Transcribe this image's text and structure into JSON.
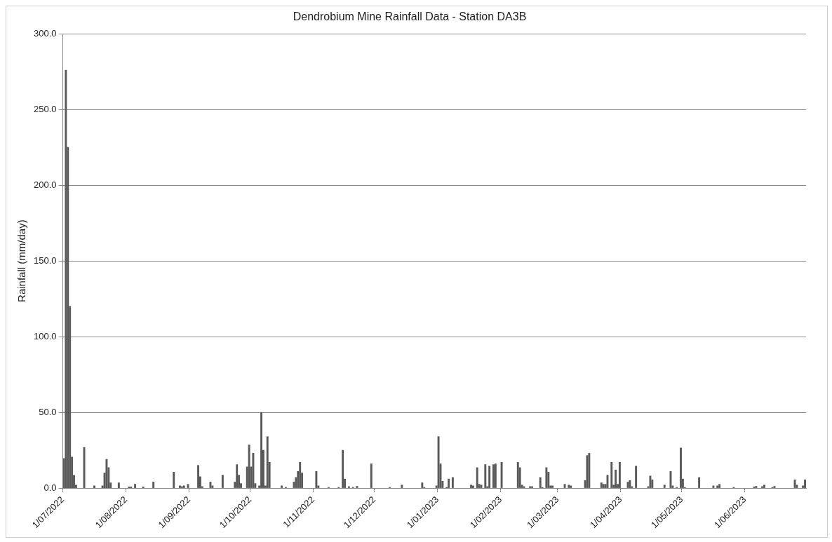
{
  "chart_data": {
    "type": "bar",
    "title": "Dendrobium Mine Rainfall Data - Station DA3B",
    "ylabel": "Rainfall (mm/day)",
    "grid": "y",
    "legend": false,
    "xlim": [
      "2022-07-01",
      "2023-07-01"
    ],
    "xticks": [
      {
        "value": "2022-07-01",
        "label": "1/07/2022"
      },
      {
        "value": "2022-08-01",
        "label": "1/08/2022"
      },
      {
        "value": "2022-09-01",
        "label": "1/09/2022"
      },
      {
        "value": "2022-10-01",
        "label": "1/10/2022"
      },
      {
        "value": "2022-11-01",
        "label": "1/11/2022"
      },
      {
        "value": "2022-12-01",
        "label": "1/12/2022"
      },
      {
        "value": "2023-01-01",
        "label": "1/01/2023"
      },
      {
        "value": "2023-02-01",
        "label": "1/02/2023"
      },
      {
        "value": "2023-03-01",
        "label": "1/03/2023"
      },
      {
        "value": "2023-04-01",
        "label": "1/04/2023"
      },
      {
        "value": "2023-05-01",
        "label": "1/05/2023"
      },
      {
        "value": "2023-06-01",
        "label": "1/06/2023"
      }
    ],
    "ylim": [
      0,
      300
    ],
    "yticks": [
      {
        "value": 0,
        "label": "0.0"
      },
      {
        "value": 50,
        "label": "50.0"
      },
      {
        "value": 100,
        "label": "100.0"
      },
      {
        "value": 150,
        "label": "150.0"
      },
      {
        "value": 200,
        "label": "200.0"
      },
      {
        "value": 250,
        "label": "250.0"
      },
      {
        "value": 300,
        "label": "300.0"
      }
    ],
    "series": [
      {
        "color": "#595959",
        "x": [
          "2022-07-01",
          "2022-07-02",
          "2022-07-03",
          "2022-07-04",
          "2022-07-05",
          "2022-07-06",
          "2022-07-07",
          "2022-07-11",
          "2022-07-16",
          "2022-07-20",
          "2022-07-21",
          "2022-07-22",
          "2022-07-23",
          "2022-07-24",
          "2022-07-28",
          "2022-08-02",
          "2022-08-03",
          "2022-08-05",
          "2022-08-09",
          "2022-08-14",
          "2022-08-24",
          "2022-08-27",
          "2022-08-28",
          "2022-08-29",
          "2022-08-31",
          "2022-09-05",
          "2022-09-06",
          "2022-09-07",
          "2022-09-11",
          "2022-09-12",
          "2022-09-17",
          "2022-09-23",
          "2022-09-24",
          "2022-09-25",
          "2022-09-26",
          "2022-09-29",
          "2022-09-30",
          "2022-10-01",
          "2022-10-02",
          "2022-10-03",
          "2022-10-05",
          "2022-10-06",
          "2022-10-07",
          "2022-10-08",
          "2022-10-09",
          "2022-10-10",
          "2022-10-16",
          "2022-10-18",
          "2022-10-22",
          "2022-10-23",
          "2022-10-24",
          "2022-10-25",
          "2022-10-26",
          "2022-11-02",
          "2022-11-03",
          "2022-11-08",
          "2022-11-13",
          "2022-11-15",
          "2022-11-16",
          "2022-11-18",
          "2022-11-20",
          "2022-11-22",
          "2022-11-29",
          "2022-12-08",
          "2022-12-14",
          "2022-12-24",
          "2022-12-25",
          "2022-12-31",
          "2023-01-01",
          "2023-01-02",
          "2023-01-03",
          "2023-01-05",
          "2023-01-06",
          "2023-01-08",
          "2023-01-17",
          "2023-01-18",
          "2023-01-20",
          "2023-01-21",
          "2023-01-22",
          "2023-01-24",
          "2023-01-25",
          "2023-01-26",
          "2023-01-28",
          "2023-01-29",
          "2023-02-01",
          "2023-02-09",
          "2023-02-10",
          "2023-02-11",
          "2023-02-12",
          "2023-02-15",
          "2023-02-16",
          "2023-02-20",
          "2023-02-21",
          "2023-02-23",
          "2023-02-24",
          "2023-02-25",
          "2023-02-26",
          "2023-03-04",
          "2023-03-06",
          "2023-03-07",
          "2023-03-14",
          "2023-03-15",
          "2023-03-16",
          "2023-03-22",
          "2023-03-23",
          "2023-03-24",
          "2023-03-25",
          "2023-03-27",
          "2023-03-28",
          "2023-03-29",
          "2023-03-30",
          "2023-03-31",
          "2023-04-04",
          "2023-04-05",
          "2023-04-06",
          "2023-04-08",
          "2023-04-14",
          "2023-04-15",
          "2023-04-16",
          "2023-04-22",
          "2023-04-25",
          "2023-04-26",
          "2023-04-28",
          "2023-04-30",
          "2023-05-01",
          "2023-05-02",
          "2023-05-09",
          "2023-05-16",
          "2023-05-18",
          "2023-05-19",
          "2023-05-26",
          "2023-06-05",
          "2023-06-06",
          "2023-06-09",
          "2023-06-10",
          "2023-06-14",
          "2023-06-15",
          "2023-06-25",
          "2023-06-26",
          "2023-06-29",
          "2023-06-30"
        ],
        "values": [
          19.6,
          276,
          225,
          120,
          20.5,
          8.5,
          2,
          26.8,
          1.5,
          1.5,
          10,
          19,
          13.5,
          3.5,
          3.5,
          0.8,
          0.8,
          2.5,
          0.8,
          4,
          10.5,
          1.5,
          1,
          1.5,
          2.5,
          15,
          7.5,
          1,
          4,
          1.5,
          8.5,
          4,
          15.5,
          8.5,
          3,
          14,
          28.5,
          14,
          23,
          3,
          1.5,
          50,
          25,
          1.5,
          34,
          17,
          1.5,
          0.5,
          4,
          7,
          11,
          17,
          10,
          11,
          1.5,
          0.5,
          0.5,
          25,
          6,
          1,
          0.5,
          1.2,
          16,
          0.5,
          2,
          3.5,
          0.5,
          1.5,
          34,
          16,
          4.5,
          0.5,
          6,
          7,
          2,
          1.5,
          13.5,
          2.5,
          2,
          15.5,
          1,
          14.5,
          15.5,
          16,
          17,
          17,
          13.5,
          2,
          1,
          1,
          1,
          7,
          0.5,
          13.5,
          10.5,
          1.5,
          1.5,
          2.5,
          2,
          1.5,
          5,
          21.5,
          23,
          3.5,
          2.5,
          2.5,
          8.5,
          17,
          2,
          12,
          2.5,
          17,
          4,
          5,
          1,
          14.5,
          1,
          8,
          5.5,
          2,
          11,
          1.5,
          0.5,
          26.5,
          6,
          0.5,
          7,
          1.5,
          1.5,
          2.5,
          0.5,
          0.8,
          1.2,
          1,
          2,
          0.5,
          1.2,
          5.5,
          2,
          1.5,
          5.5
        ]
      }
    ]
  }
}
